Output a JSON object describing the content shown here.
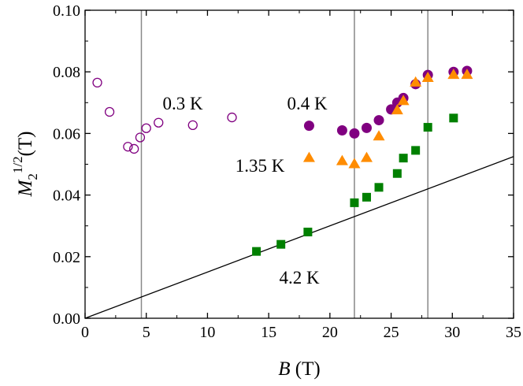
{
  "chart_data": {
    "type": "scatter",
    "x_label": {
      "symbol": "B",
      "unit": "(T)"
    },
    "y_label": {
      "symbol": "M",
      "subscript": "2",
      "superscript": "1/2",
      "unit": "(T)"
    },
    "xlim": [
      0,
      35
    ],
    "ylim": [
      0,
      0.1
    ],
    "xticks": [
      0,
      5,
      10,
      15,
      20,
      25,
      30,
      35
    ],
    "yticks": [
      {
        "value": 0,
        "label": "0.00"
      },
      {
        "value": 0.02,
        "label": "0.02"
      },
      {
        "value": 0.04,
        "label": "0.04"
      },
      {
        "value": 0.06,
        "label": "0.06"
      },
      {
        "value": 0.08,
        "label": "0.08"
      },
      {
        "value": 0.1,
        "label": "0.10"
      }
    ],
    "series": [
      {
        "name": "0.3 K",
        "color": "#800080",
        "marker": "open-circle",
        "x": [
          1.0,
          2.0,
          3.5,
          4.0,
          4.5,
          5.0,
          6.0,
          8.8,
          12.0
        ],
        "values": [
          0.0765,
          0.067,
          0.0557,
          0.055,
          0.0587,
          0.0617,
          0.0635,
          0.0627,
          0.0652
        ]
      },
      {
        "name": "0.4 K",
        "color": "#800080",
        "marker": "circle",
        "x": [
          18.3,
          21.0,
          22.0,
          23.0,
          24.0,
          25.0,
          25.5,
          26.0,
          27.0,
          28.0,
          30.1,
          31.2
        ],
        "values": [
          0.0625,
          0.061,
          0.06,
          0.0618,
          0.0643,
          0.0678,
          0.07,
          0.0715,
          0.076,
          0.079,
          0.08,
          0.0803
        ]
      },
      {
        "name": "1.35 K",
        "color": "#ff8c00",
        "marker": "triangle",
        "x": [
          18.3,
          21.0,
          22.0,
          23.0,
          24.0,
          25.5,
          26.0,
          27.0,
          28.0,
          30.1,
          31.2
        ],
        "values": [
          0.052,
          0.051,
          0.05,
          0.052,
          0.059,
          0.0675,
          0.0705,
          0.0765,
          0.078,
          0.079,
          0.079
        ]
      },
      {
        "name": "4.2 K",
        "color": "#008000",
        "marker": "square",
        "x": [
          14.0,
          16.0,
          18.2,
          22.0,
          23.0,
          24.0,
          25.5,
          26.0,
          27.0,
          28.0,
          30.1
        ],
        "values": [
          0.0217,
          0.024,
          0.028,
          0.0375,
          0.0393,
          0.0425,
          0.047,
          0.052,
          0.0545,
          0.062,
          0.065
        ]
      }
    ],
    "reference_line": {
      "x": [
        0,
        35
      ],
      "values": [
        0,
        0.0525
      ]
    },
    "vertical_lines": [
      4.6,
      22.0,
      28.0
    ]
  }
}
